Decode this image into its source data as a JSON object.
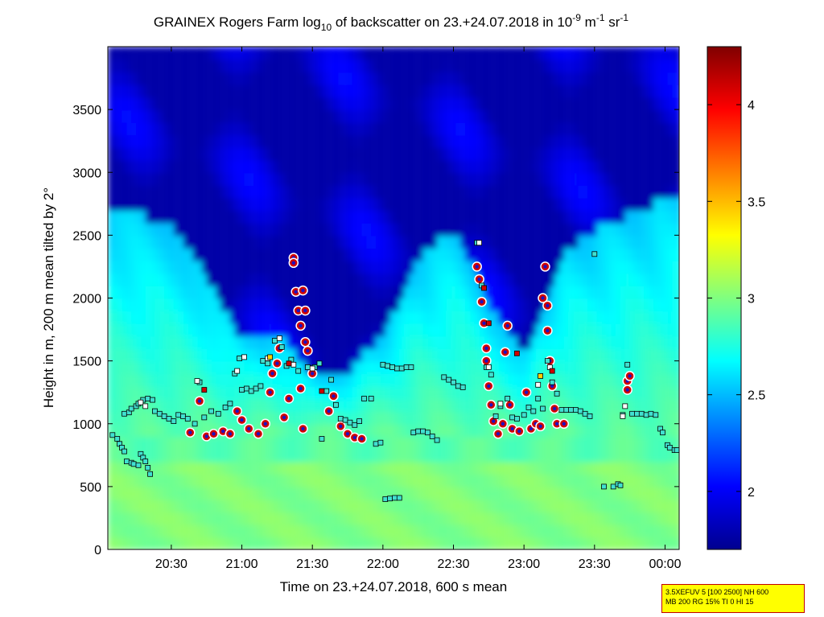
{
  "chart_data": {
    "type": "heatmap",
    "title": {
      "part1": "GRAINEX Rogers Farm log",
      "sub1": "10",
      "part2": " of backscatter on 23.+24.07.2018 in 10",
      "sup1": "-9",
      "part3": " m",
      "sup2": "-1",
      "part4": " sr",
      "sup3": "-1"
    },
    "xlabel": "Time on 23.+24.07.2018, 600 s mean",
    "ylabel": "Height in m, 200 m mean tilted by 2°",
    "x_axis": {
      "start": "20:03",
      "end": "00:06",
      "ticks": [
        "20:30",
        "21:00",
        "21:30",
        "22:00",
        "22:30",
        "23:00",
        "23:30",
        "00:00"
      ]
    },
    "y_axis": {
      "range": [
        0,
        4000
      ],
      "ticks": [
        0,
        500,
        1000,
        1500,
        2000,
        2500,
        3000,
        3500
      ]
    },
    "colorbar": {
      "range": [
        1.7,
        4.3
      ],
      "ticks": [
        "2",
        "2.5",
        "3",
        "3.5",
        "4"
      ],
      "colormap": "jet"
    },
    "background_field": {
      "surface_value": 3.0,
      "boundary_layer_value": 2.8,
      "free_troposphere_value": 1.8,
      "boundary_layer_top": [
        {
          "t": "20:05",
          "h": 2700
        },
        {
          "t": "20:30",
          "h": 2500
        },
        {
          "t": "20:45",
          "h": 2100
        },
        {
          "t": "21:00",
          "h": 1600
        },
        {
          "t": "21:15",
          "h": 1700
        },
        {
          "t": "21:30",
          "h": 1300
        },
        {
          "t": "21:45",
          "h": 1400
        },
        {
          "t": "22:00",
          "h": 1700
        },
        {
          "t": "22:15",
          "h": 2300
        },
        {
          "t": "22:30",
          "h": 2500
        },
        {
          "t": "22:45",
          "h": 1900
        },
        {
          "t": "23:00",
          "h": 1500
        },
        {
          "t": "23:15",
          "h": 2300
        },
        {
          "t": "23:30",
          "h": 2500
        },
        {
          "t": "00:05",
          "h": 2800
        }
      ]
    },
    "series": [
      {
        "marker": "circle",
        "color": "#d00000",
        "points": [
          {
            "t": "20:38",
            "h": 930
          },
          {
            "t": "20:42",
            "h": 1180
          },
          {
            "t": "20:45",
            "h": 900
          },
          {
            "t": "20:48",
            "h": 920
          },
          {
            "t": "20:52",
            "h": 940
          },
          {
            "t": "20:55",
            "h": 920
          },
          {
            "t": "20:58",
            "h": 1100
          },
          {
            "t": "21:00",
            "h": 1030
          },
          {
            "t": "21:03",
            "h": 960
          },
          {
            "t": "21:07",
            "h": 920
          },
          {
            "t": "21:10",
            "h": 1000
          },
          {
            "t": "21:12",
            "h": 1250
          },
          {
            "t": "21:13",
            "h": 1400
          },
          {
            "t": "21:15",
            "h": 1480
          },
          {
            "t": "21:16",
            "h": 1600
          },
          {
            "t": "21:18",
            "h": 1050
          },
          {
            "t": "21:20",
            "h": 1200
          },
          {
            "t": "21:22",
            "h": 2320
          },
          {
            "t": "21:22",
            "h": 2280
          },
          {
            "t": "21:23",
            "h": 2050
          },
          {
            "t": "21:24",
            "h": 1900
          },
          {
            "t": "21:25",
            "h": 1780
          },
          {
            "t": "21:26",
            "h": 2060
          },
          {
            "t": "21:27",
            "h": 1650
          },
          {
            "t": "21:27",
            "h": 1900
          },
          {
            "t": "21:28",
            "h": 1580
          },
          {
            "t": "21:25",
            "h": 1280
          },
          {
            "t": "21:26",
            "h": 960
          },
          {
            "t": "21:30",
            "h": 1400
          },
          {
            "t": "21:37",
            "h": 1100
          },
          {
            "t": "21:39",
            "h": 1220
          },
          {
            "t": "21:42",
            "h": 980
          },
          {
            "t": "21:45",
            "h": 920
          },
          {
            "t": "21:48",
            "h": 890
          },
          {
            "t": "21:51",
            "h": 880
          },
          {
            "t": "22:40",
            "h": 2250
          },
          {
            "t": "22:41",
            "h": 2150
          },
          {
            "t": "22:42",
            "h": 1970
          },
          {
            "t": "22:43",
            "h": 1800
          },
          {
            "t": "22:44",
            "h": 1600
          },
          {
            "t": "22:44",
            "h": 1500
          },
          {
            "t": "22:45",
            "h": 1300
          },
          {
            "t": "22:46",
            "h": 1150
          },
          {
            "t": "22:47",
            "h": 1020
          },
          {
            "t": "22:49",
            "h": 920
          },
          {
            "t": "22:51",
            "h": 1000
          },
          {
            "t": "22:52",
            "h": 1570
          },
          {
            "t": "22:53",
            "h": 1780
          },
          {
            "t": "22:54",
            "h": 1150
          },
          {
            "t": "22:55",
            "h": 960
          },
          {
            "t": "22:58",
            "h": 940
          },
          {
            "t": "23:01",
            "h": 1250
          },
          {
            "t": "23:03",
            "h": 960
          },
          {
            "t": "23:05",
            "h": 1000
          },
          {
            "t": "23:07",
            "h": 980
          },
          {
            "t": "23:08",
            "h": 2000
          },
          {
            "t": "23:09",
            "h": 2250
          },
          {
            "t": "23:10",
            "h": 1940
          },
          {
            "t": "23:10",
            "h": 1740
          },
          {
            "t": "23:11",
            "h": 1500
          },
          {
            "t": "23:12",
            "h": 1300
          },
          {
            "t": "23:13",
            "h": 1120
          },
          {
            "t": "23:14",
            "h": 1000
          },
          {
            "t": "23:17",
            "h": 1000
          },
          {
            "t": "23:44",
            "h": 1340
          },
          {
            "t": "23:45",
            "h": 1380
          },
          {
            "t": "23:44",
            "h": 1270
          }
        ]
      },
      {
        "marker": "square",
        "color": "#40e0d0",
        "points": [
          {
            "t": "20:05",
            "h": 910
          },
          {
            "t": "20:07",
            "h": 880
          },
          {
            "t": "20:08",
            "h": 840
          },
          {
            "t": "20:09",
            "h": 810
          },
          {
            "t": "20:10",
            "h": 780
          },
          {
            "t": "20:11",
            "h": 700
          },
          {
            "t": "20:13",
            "h": 690
          },
          {
            "t": "20:14",
            "h": 680
          },
          {
            "t": "20:16",
            "h": 670
          },
          {
            "t": "20:17",
            "h": 760
          },
          {
            "t": "20:18",
            "h": 730
          },
          {
            "t": "20:19",
            "h": 700
          },
          {
            "t": "20:20",
            "h": 650
          },
          {
            "t": "20:21",
            "h": 600
          },
          {
            "t": "20:10",
            "h": 1080
          },
          {
            "t": "20:12",
            "h": 1090
          },
          {
            "t": "20:13",
            "h": 1120
          },
          {
            "t": "20:15",
            "h": 1140
          },
          {
            "t": "20:16",
            "h": 1160
          },
          {
            "t": "20:18",
            "h": 1190
          },
          {
            "t": "20:20",
            "h": 1200
          },
          {
            "t": "20:22",
            "h": 1190
          },
          {
            "t": "20:23",
            "h": 1100
          },
          {
            "t": "20:25",
            "h": 1080
          },
          {
            "t": "20:27",
            "h": 1060
          },
          {
            "t": "20:29",
            "h": 1040
          },
          {
            "t": "20:31",
            "h": 1020
          },
          {
            "t": "20:33",
            "h": 1070
          },
          {
            "t": "20:35",
            "h": 1060
          },
          {
            "t": "20:37",
            "h": 1040
          },
          {
            "t": "20:40",
            "h": 1000
          },
          {
            "t": "20:42",
            "h": 1330
          },
          {
            "t": "20:44",
            "h": 1050
          },
          {
            "t": "20:47",
            "h": 1100
          },
          {
            "t": "20:50",
            "h": 1080
          },
          {
            "t": "20:53",
            "h": 1130
          },
          {
            "t": "20:55",
            "h": 1160
          },
          {
            "t": "20:57",
            "h": 1400
          },
          {
            "t": "20:59",
            "h": 1520
          },
          {
            "t": "21:00",
            "h": 1270
          },
          {
            "t": "21:02",
            "h": 1280
          },
          {
            "t": "21:04",
            "h": 1260
          },
          {
            "t": "21:06",
            "h": 1280
          },
          {
            "t": "21:08",
            "h": 1300
          },
          {
            "t": "21:09",
            "h": 1500
          },
          {
            "t": "21:11",
            "h": 1480
          },
          {
            "t": "21:14",
            "h": 1660
          },
          {
            "t": "21:17",
            "h": 1610
          },
          {
            "t": "21:19",
            "h": 1460
          },
          {
            "t": "21:21",
            "h": 1510
          },
          {
            "t": "21:24",
            "h": 1420
          },
          {
            "t": "21:28",
            "h": 1450
          },
          {
            "t": "21:31",
            "h": 1450
          },
          {
            "t": "21:33",
            "h": 1480
          },
          {
            "t": "21:34",
            "h": 880
          },
          {
            "t": "21:36",
            "h": 1260
          },
          {
            "t": "21:38",
            "h": 1350
          },
          {
            "t": "21:40",
            "h": 1150
          },
          {
            "t": "21:42",
            "h": 1040
          },
          {
            "t": "21:44",
            "h": 1030
          },
          {
            "t": "21:46",
            "h": 1010
          },
          {
            "t": "21:48",
            "h": 990
          },
          {
            "t": "21:50",
            "h": 1020
          },
          {
            "t": "21:52",
            "h": 1200
          },
          {
            "t": "21:55",
            "h": 1200
          },
          {
            "t": "21:57",
            "h": 840
          },
          {
            "t": "21:59",
            "h": 850
          },
          {
            "t": "22:00",
            "h": 1470
          },
          {
            "t": "22:02",
            "h": 1460
          },
          {
            "t": "22:04",
            "h": 1450
          },
          {
            "t": "22:06",
            "h": 1440
          },
          {
            "t": "22:08",
            "h": 1440
          },
          {
            "t": "22:10",
            "h": 1450
          },
          {
            "t": "22:12",
            "h": 1450
          },
          {
            "t": "22:01",
            "h": 400
          },
          {
            "t": "22:03",
            "h": 405
          },
          {
            "t": "22:05",
            "h": 410
          },
          {
            "t": "22:07",
            "h": 410
          },
          {
            "t": "22:13",
            "h": 930
          },
          {
            "t": "22:15",
            "h": 940
          },
          {
            "t": "22:17",
            "h": 940
          },
          {
            "t": "22:19",
            "h": 930
          },
          {
            "t": "22:21",
            "h": 900
          },
          {
            "t": "22:23",
            "h": 870
          },
          {
            "t": "22:26",
            "h": 1370
          },
          {
            "t": "22:28",
            "h": 1350
          },
          {
            "t": "22:30",
            "h": 1330
          },
          {
            "t": "22:32",
            "h": 1300
          },
          {
            "t": "22:34",
            "h": 1290
          },
          {
            "t": "22:40",
            "h": 2440
          },
          {
            "t": "22:42",
            "h": 2100
          },
          {
            "t": "22:44",
            "h": 1450
          },
          {
            "t": "22:46",
            "h": 1390
          },
          {
            "t": "22:48",
            "h": 1060
          },
          {
            "t": "22:50",
            "h": 1140
          },
          {
            "t": "22:53",
            "h": 1200
          },
          {
            "t": "22:55",
            "h": 1050
          },
          {
            "t": "22:57",
            "h": 1040
          },
          {
            "t": "23:00",
            "h": 1070
          },
          {
            "t": "23:02",
            "h": 1130
          },
          {
            "t": "23:04",
            "h": 1100
          },
          {
            "t": "23:06",
            "h": 1200
          },
          {
            "t": "23:08",
            "h": 1120
          },
          {
            "t": "23:10",
            "h": 1500
          },
          {
            "t": "23:12",
            "h": 1330
          },
          {
            "t": "23:14",
            "h": 1240
          },
          {
            "t": "23:16",
            "h": 1110
          },
          {
            "t": "23:18",
            "h": 1110
          },
          {
            "t": "23:20",
            "h": 1110
          },
          {
            "t": "23:22",
            "h": 1110
          },
          {
            "t": "23:24",
            "h": 1100
          },
          {
            "t": "23:26",
            "h": 1080
          },
          {
            "t": "23:28",
            "h": 1060
          },
          {
            "t": "23:30",
            "h": 2350
          },
          {
            "t": "23:34",
            "h": 500
          },
          {
            "t": "23:38",
            "h": 500
          },
          {
            "t": "23:40",
            "h": 520
          },
          {
            "t": "23:41",
            "h": 510
          },
          {
            "t": "23:42",
            "h": 1070
          },
          {
            "t": "23:44",
            "h": 1470
          },
          {
            "t": "23:46",
            "h": 1080
          },
          {
            "t": "23:48",
            "h": 1080
          },
          {
            "t": "23:50",
            "h": 1080
          },
          {
            "t": "23:52",
            "h": 1070
          },
          {
            "t": "23:54",
            "h": 1080
          },
          {
            "t": "23:56",
            "h": 1070
          },
          {
            "t": "23:58",
            "h": 960
          },
          {
            "t": "23:59",
            "h": 930
          },
          {
            "t": "00:01",
            "h": 830
          },
          {
            "t": "00:02",
            "h": 810
          },
          {
            "t": "00:04",
            "h": 790
          },
          {
            "t": "00:05",
            "h": 790
          }
        ]
      },
      {
        "marker": "square",
        "color": "#ffffff",
        "points": [
          {
            "t": "20:17",
            "h": 1170
          },
          {
            "t": "20:19",
            "h": 1140
          },
          {
            "t": "20:41",
            "h": 1340
          },
          {
            "t": "20:58",
            "h": 1420
          },
          {
            "t": "21:01",
            "h": 1530
          },
          {
            "t": "21:11",
            "h": 1520
          },
          {
            "t": "21:16",
            "h": 1680
          },
          {
            "t": "21:22",
            "h": 1470
          },
          {
            "t": "21:30",
            "h": 1440
          },
          {
            "t": "22:41",
            "h": 2440
          },
          {
            "t": "22:45",
            "h": 1450
          },
          {
            "t": "22:50",
            "h": 1160
          },
          {
            "t": "23:06",
            "h": 1310
          },
          {
            "t": "23:11",
            "h": 1450
          },
          {
            "t": "23:43",
            "h": 1140
          },
          {
            "t": "23:42",
            "h": 1060
          }
        ]
      },
      {
        "marker": "square",
        "color": "#d00000",
        "points": [
          {
            "t": "20:44",
            "h": 1270
          },
          {
            "t": "21:20",
            "h": 1480
          },
          {
            "t": "21:34",
            "h": 1260
          },
          {
            "t": "22:43",
            "h": 2080
          },
          {
            "t": "22:45",
            "h": 1800
          },
          {
            "t": "22:57",
            "h": 1560
          },
          {
            "t": "23:12",
            "h": 1420
          }
        ]
      },
      {
        "marker": "square",
        "color": "#ffd000",
        "points": [
          {
            "t": "21:12",
            "h": 1530
          },
          {
            "t": "23:07",
            "h": 1380
          }
        ]
      }
    ]
  },
  "info_box": {
    "line1": "3.5XEFUV 5 [100 2500] NH 600",
    "line2": "MB 200 RG 15% TI 0 HI 15"
  }
}
